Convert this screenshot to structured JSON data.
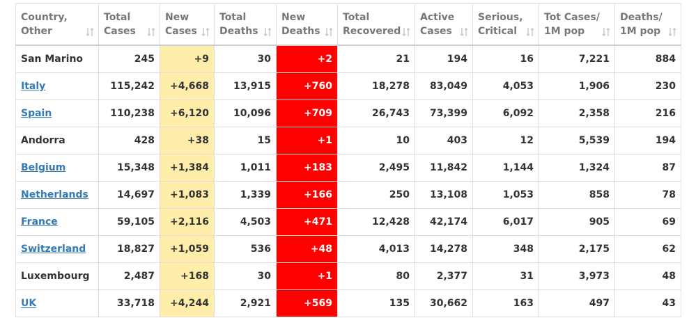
{
  "header": {
    "columns": [
      [
        "Country,",
        "Other"
      ],
      [
        "Total",
        "Cases"
      ],
      [
        "New",
        "Cases"
      ],
      [
        "Total",
        "Deaths"
      ],
      [
        "New",
        "Deaths"
      ],
      [
        "Total",
        "Recovered"
      ],
      [
        "Active",
        "Cases"
      ],
      [
        "Serious,",
        "Critical"
      ],
      [
        "Tot Cases/",
        "1M pop"
      ],
      [
        "Deaths/",
        "1M pop"
      ]
    ]
  },
  "table": {
    "rows": [
      {
        "country": "San Marino",
        "link": false,
        "values": [
          "245",
          "+9",
          "30",
          "+2",
          "21",
          "194",
          "16",
          "7,221",
          "884"
        ]
      },
      {
        "country": "Italy",
        "link": true,
        "values": [
          "115,242",
          "+4,668",
          "13,915",
          "+760",
          "18,278",
          "83,049",
          "4,053",
          "1,906",
          "230"
        ]
      },
      {
        "country": "Spain",
        "link": true,
        "values": [
          "110,238",
          "+6,120",
          "10,096",
          "+709",
          "26,743",
          "73,399",
          "6,092",
          "2,358",
          "216"
        ]
      },
      {
        "country": "Andorra",
        "link": false,
        "values": [
          "428",
          "+38",
          "15",
          "+1",
          "10",
          "403",
          "12",
          "5,539",
          "194"
        ]
      },
      {
        "country": "Belgium",
        "link": true,
        "values": [
          "15,348",
          "+1,384",
          "1,011",
          "+183",
          "2,495",
          "11,842",
          "1,144",
          "1,324",
          "87"
        ]
      },
      {
        "country": "Netherlands",
        "link": true,
        "values": [
          "14,697",
          "+1,083",
          "1,339",
          "+166",
          "250",
          "13,108",
          "1,053",
          "858",
          "78"
        ]
      },
      {
        "country": "France",
        "link": true,
        "values": [
          "59,105",
          "+2,116",
          "4,503",
          "+471",
          "12,428",
          "42,174",
          "6,017",
          "905",
          "69"
        ]
      },
      {
        "country": "Switzerland",
        "link": true,
        "values": [
          "18,827",
          "+1,059",
          "536",
          "+48",
          "4,013",
          "14,278",
          "348",
          "2,175",
          "62"
        ]
      },
      {
        "country": "Luxembourg",
        "link": false,
        "values": [
          "2,487",
          "+168",
          "30",
          "+1",
          "80",
          "2,377",
          "31",
          "3,973",
          "48"
        ]
      },
      {
        "country": "UK",
        "link": true,
        "values": [
          "33,718",
          "+4,244",
          "2,921",
          "+569",
          "135",
          "30,662",
          "163",
          "497",
          "43"
        ]
      }
    ]
  }
}
